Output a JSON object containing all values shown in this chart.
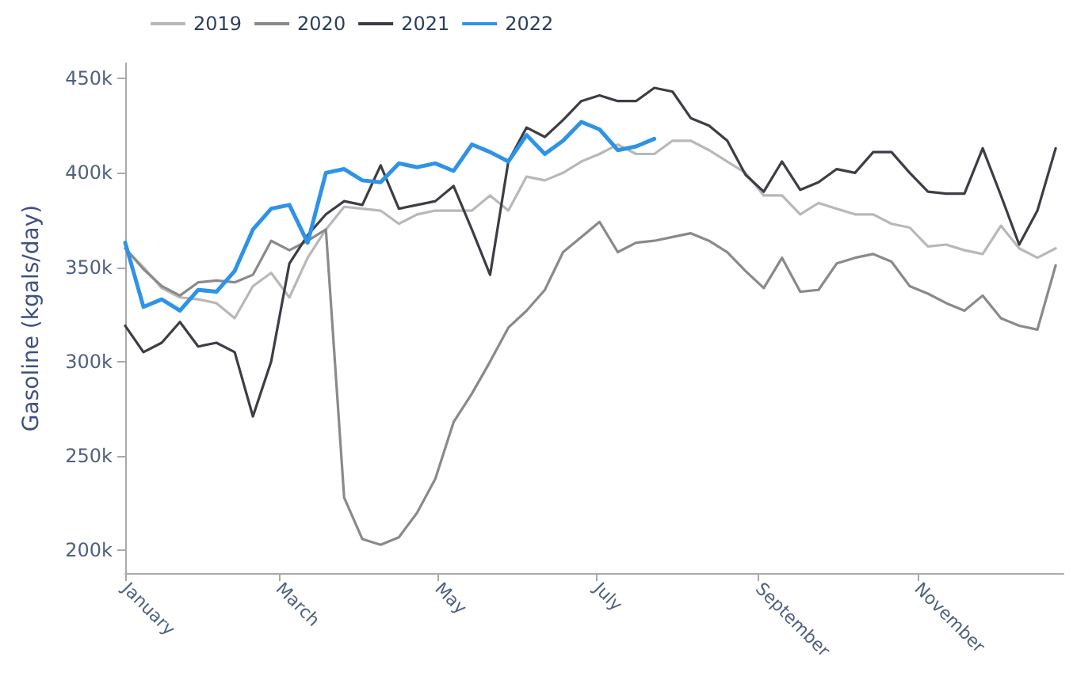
{
  "chart_data": {
    "type": "line",
    "ylabel": "Gasoline (kgals/day)",
    "x": [
      "--01-01",
      "--01-08",
      "--01-15",
      "--01-22",
      "--01-29",
      "--02-05",
      "--02-12",
      "--02-19",
      "--02-26",
      "--03-05",
      "--03-12",
      "--03-19",
      "--03-26",
      "--04-02",
      "--04-09",
      "--04-16",
      "--04-23",
      "--04-30",
      "--05-07",
      "--05-14",
      "--05-21",
      "--05-28",
      "--06-04",
      "--06-11",
      "--06-18",
      "--06-25",
      "--07-02",
      "--07-09",
      "--07-16",
      "--07-23",
      "--07-30",
      "--08-06",
      "--08-13",
      "--08-20",
      "--08-27",
      "--09-03",
      "--09-10",
      "--09-17",
      "--09-24",
      "--10-01",
      "--10-08",
      "--10-15",
      "--10-22",
      "--10-29",
      "--11-05",
      "--11-12",
      "--11-19",
      "--11-26",
      "--12-03",
      "--12-10",
      "--12-17",
      "--12-24"
    ],
    "series": [
      {
        "name": "2019",
        "color": "#b8b8b8",
        "values": [
          360000,
          350000,
          339000,
          334000,
          333000,
          331000,
          323000,
          340000,
          347000,
          334000,
          355000,
          370000,
          382000,
          381000,
          380000,
          373000,
          378000,
          380000,
          380000,
          380000,
          388000,
          380000,
          398000,
          396000,
          400000,
          406000,
          410000,
          415000,
          410000,
          410000,
          417000,
          417000,
          412000,
          406000,
          400000,
          388000,
          388000,
          378000,
          384000,
          381000,
          378000,
          378000,
          373000,
          371000,
          361000,
          362000,
          359000,
          357000,
          372000,
          360000,
          355000,
          360000
        ]
      },
      {
        "name": "2020",
        "color": "#8a8a8a",
        "values": [
          360000,
          349000,
          340000,
          335000,
          342000,
          343000,
          342000,
          346000,
          364000,
          359000,
          364000,
          370000,
          228000,
          206000,
          203000,
          207000,
          220000,
          238000,
          268000,
          283000,
          300000,
          318000,
          327000,
          338000,
          358000,
          366000,
          374000,
          358000,
          363000,
          364000,
          366000,
          368000,
          364000,
          358000,
          348000,
          339000,
          355000,
          337000,
          338000,
          352000,
          355000,
          357000,
          353000,
          340000,
          336000,
          331000,
          327000,
          335000,
          323000,
          319000,
          317000,
          351000
        ]
      },
      {
        "name": "2021",
        "color": "#3d3d45",
        "values": [
          319000,
          305000,
          310000,
          321000,
          308000,
          310000,
          305000,
          271000,
          300000,
          352000,
          367000,
          378000,
          385000,
          383000,
          404000,
          381000,
          383000,
          385000,
          393000,
          370000,
          346000,
          406000,
          424000,
          419000,
          428000,
          438000,
          441000,
          438000,
          438000,
          445000,
          443000,
          429000,
          425000,
          417000,
          399000,
          390000,
          406000,
          391000,
          395000,
          402000,
          400000,
          411000,
          411000,
          400000,
          390000,
          389000,
          389000,
          413000,
          388000,
          362000,
          380000,
          413000
        ]
      },
      {
        "name": "2022",
        "color": "#2e93e8",
        "values": [
          363000,
          329000,
          333000,
          327000,
          338000,
          337000,
          348000,
          370000,
          381000,
          383000,
          363000,
          400000,
          402000,
          396000,
          395000,
          405000,
          403000,
          405000,
          401000,
          415000,
          411000,
          406000,
          420000,
          410000,
          417000,
          427000,
          423000,
          412000,
          414000,
          418000,
          null,
          null,
          null,
          null,
          null,
          null,
          null,
          null,
          null,
          null,
          null,
          null,
          null,
          null,
          null,
          null,
          null,
          null,
          null,
          null,
          null,
          null
        ]
      }
    ],
    "xlim": [
      "--01-01",
      "--12-27"
    ],
    "xticks": [
      {
        "value": "--01-01",
        "label": "January"
      },
      {
        "value": "--03-01",
        "label": "March"
      },
      {
        "value": "--05-01",
        "label": "May"
      },
      {
        "value": "--07-01",
        "label": "July"
      },
      {
        "value": "--09-01",
        "label": "September"
      },
      {
        "value": "--11-01",
        "label": "November"
      }
    ],
    "ylim": [
      188000,
      458000
    ],
    "yticks": [
      {
        "value": 200000,
        "label": "200k"
      },
      {
        "value": 250000,
        "label": "250k"
      },
      {
        "value": 300000,
        "label": "300k"
      },
      {
        "value": 350000,
        "label": "350k"
      },
      {
        "value": 400000,
        "label": "400k"
      },
      {
        "value": 450000,
        "label": "450k"
      }
    ],
    "grid": false,
    "legend": "top left",
    "marker": "none",
    "line_style": "solid"
  }
}
